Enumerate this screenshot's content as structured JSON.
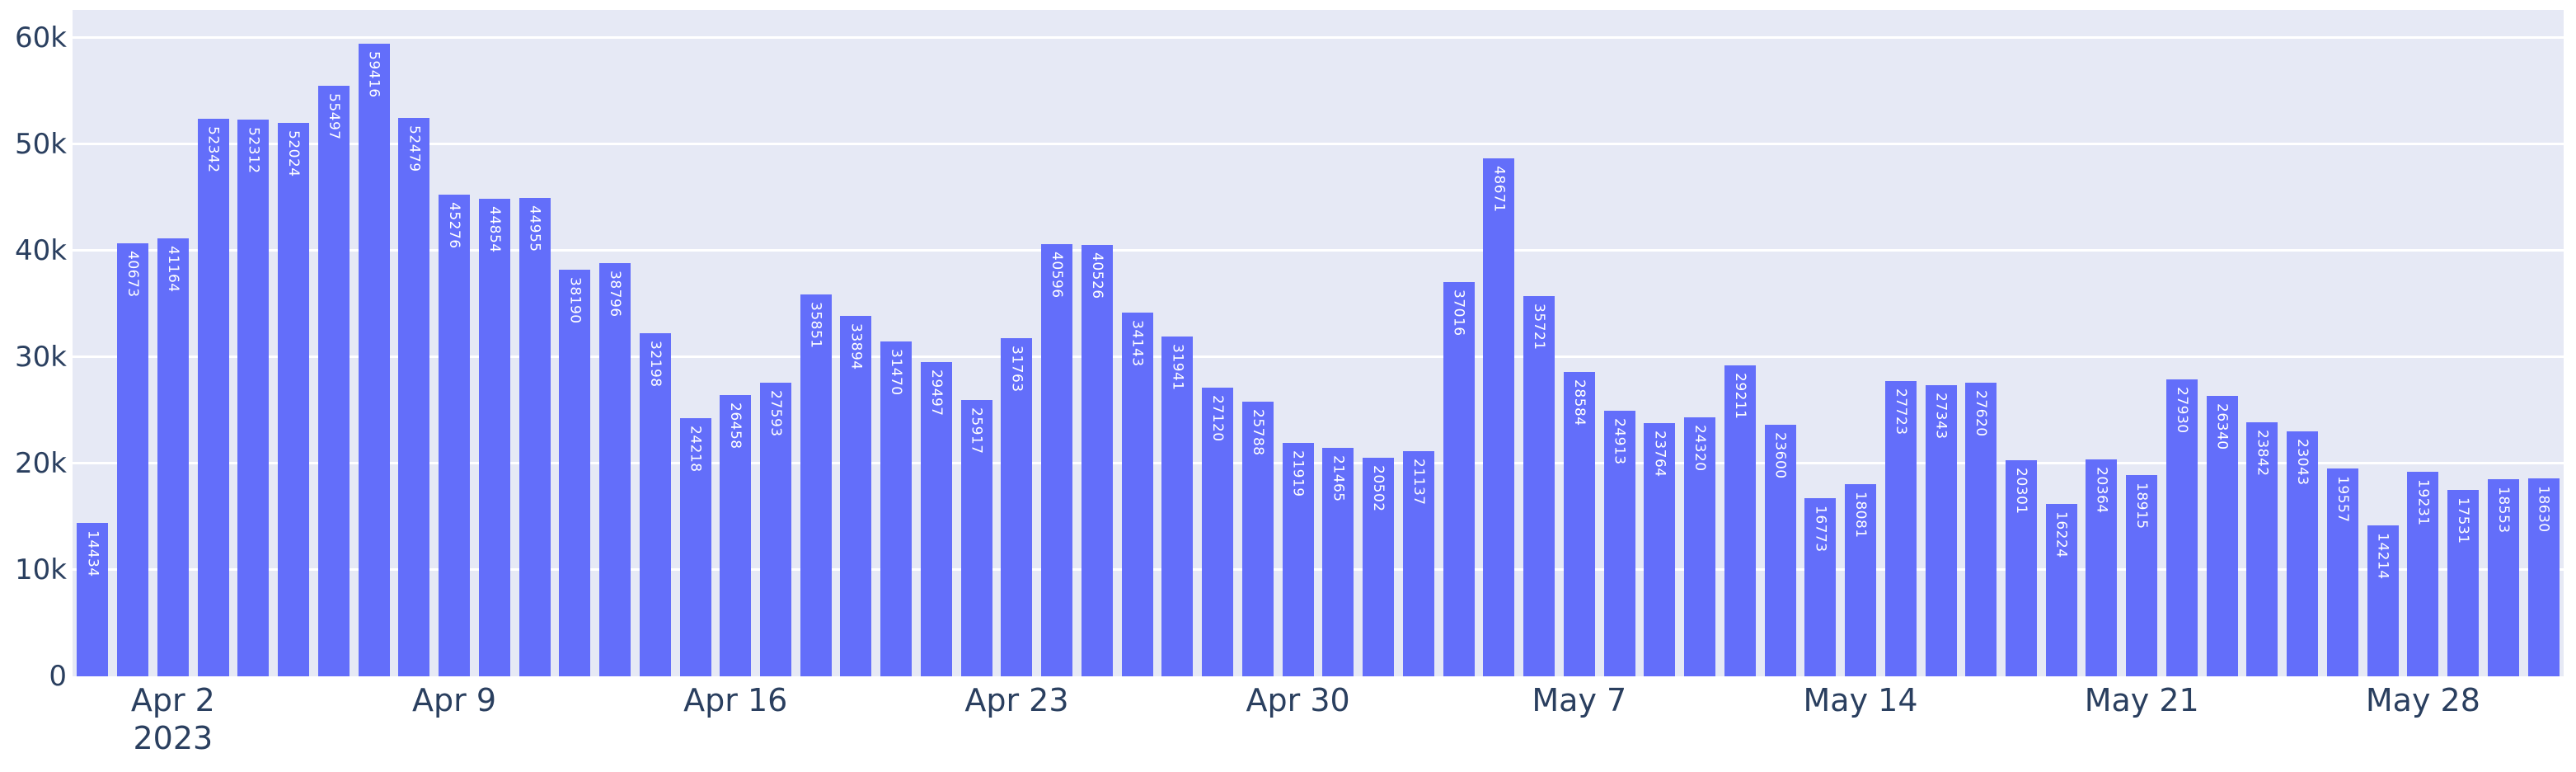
{
  "theme": {
    "page_bg": "#FFFFFF",
    "plot_bg": "#E6E9F5",
    "grid_color": "#FFFFFF",
    "bar_color": "#636EFA",
    "bar_label_color": "#FFFFFF",
    "tick_text_color": "#2A3F5F"
  },
  "chart_data": {
    "type": "bar",
    "title": "",
    "xlabel": "",
    "ylabel": "",
    "grid": true,
    "legend": false,
    "ylim": [
      0,
      62600
    ],
    "x": [
      "2023-03-31",
      "2023-04-01",
      "2023-04-02",
      "2023-04-03",
      "2023-04-04",
      "2023-04-05",
      "2023-04-06",
      "2023-04-07",
      "2023-04-08",
      "2023-04-09",
      "2023-04-10",
      "2023-04-11",
      "2023-04-12",
      "2023-04-13",
      "2023-04-14",
      "2023-04-15",
      "2023-04-16",
      "2023-04-17",
      "2023-04-18",
      "2023-04-19",
      "2023-04-20",
      "2023-04-21",
      "2023-04-22",
      "2023-04-23",
      "2023-04-24",
      "2023-04-25",
      "2023-04-26",
      "2023-04-27",
      "2023-04-28",
      "2023-04-29",
      "2023-04-30",
      "2023-05-01",
      "2023-05-02",
      "2023-05-03",
      "2023-05-04",
      "2023-05-05",
      "2023-05-06",
      "2023-05-07",
      "2023-05-08",
      "2023-05-09",
      "2023-05-10",
      "2023-05-11",
      "2023-05-12",
      "2023-05-13",
      "2023-05-14",
      "2023-05-15",
      "2023-05-16",
      "2023-05-17",
      "2023-05-18",
      "2023-05-19",
      "2023-05-20",
      "2023-05-21",
      "2023-05-22",
      "2023-05-23",
      "2023-05-24",
      "2023-05-25",
      "2023-05-26",
      "2023-05-27",
      "2023-05-28",
      "2023-05-29",
      "2023-05-30",
      "2023-05-31"
    ],
    "values": [
      14434,
      40673,
      41164,
      52342,
      52312,
      52024,
      55497,
      59416,
      52479,
      45276,
      44854,
      44955,
      38190,
      38796,
      32198,
      24218,
      26458,
      27593,
      35851,
      33894,
      31470,
      29497,
      25917,
      31763,
      40596,
      40526,
      34143,
      31941,
      27120,
      25788,
      21919,
      21465,
      20502,
      21137,
      37016,
      48671,
      35721,
      28584,
      24913,
      23764,
      24320,
      29211,
      23600,
      16773,
      18081,
      27723,
      27343,
      27620,
      20301,
      16224,
      20364,
      18915,
      27930,
      26340,
      23842,
      23043,
      19557,
      14214,
      19231,
      17531,
      18553,
      18630
    ],
    "yticks": [
      {
        "value": 0,
        "label": "0"
      },
      {
        "value": 10000,
        "label": "10k"
      },
      {
        "value": 20000,
        "label": "20k"
      },
      {
        "value": 30000,
        "label": "30k"
      },
      {
        "value": 40000,
        "label": "40k"
      },
      {
        "value": 50000,
        "label": "50k"
      },
      {
        "value": 60000,
        "label": "60k"
      }
    ],
    "xticks": [
      {
        "index": 2,
        "label": "Apr 2",
        "sublabel": "2023"
      },
      {
        "index": 9,
        "label": "Apr 9"
      },
      {
        "index": 16,
        "label": "Apr 16"
      },
      {
        "index": 23,
        "label": "Apr 23"
      },
      {
        "index": 30,
        "label": "Apr 30"
      },
      {
        "index": 37,
        "label": "May 7"
      },
      {
        "index": 44,
        "label": "May 14"
      },
      {
        "index": 51,
        "label": "May 21"
      },
      {
        "index": 58,
        "label": "May 28"
      }
    ]
  }
}
